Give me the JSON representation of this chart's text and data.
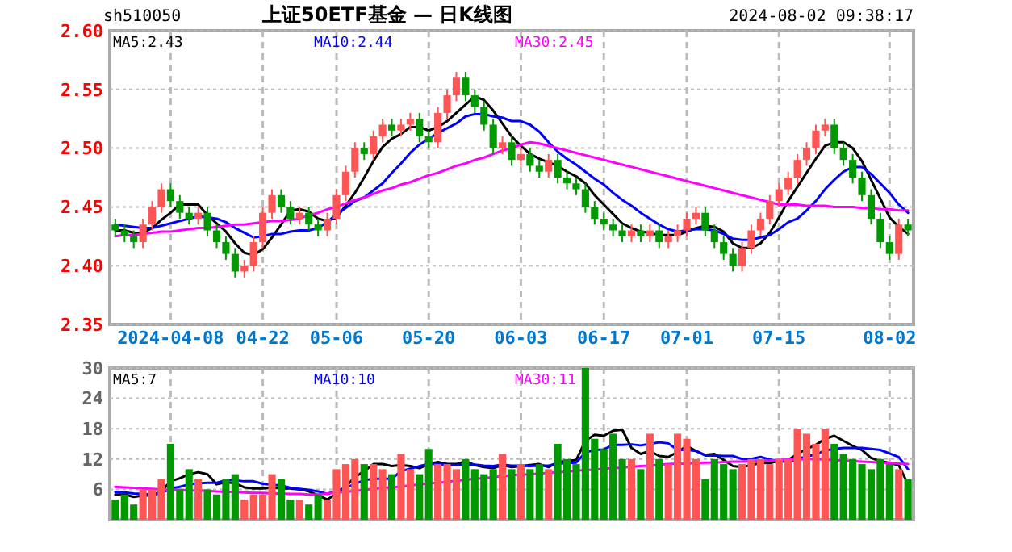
{
  "chart_data": [
    {
      "type": "candlestick",
      "title": "上证50ETF基金 — 日K线图",
      "annotations": [
        "sh510050",
        "2024-08-02 09:38:17"
      ],
      "categories": [
        null,
        null,
        null,
        null,
        null,
        null,
        "2024-04-08",
        null,
        null,
        null,
        null,
        null,
        null,
        null,
        null,
        null,
        "04-22",
        null,
        null,
        null,
        null,
        null,
        null,
        null,
        "05-06",
        null,
        null,
        null,
        null,
        null,
        null,
        null,
        null,
        null,
        "05-20",
        null,
        null,
        null,
        null,
        null,
        null,
        null,
        null,
        null,
        "06-03",
        null,
        null,
        null,
        null,
        null,
        null,
        null,
        null,
        "06-17",
        null,
        null,
        null,
        null,
        null,
        null,
        null,
        null,
        "07-01",
        null,
        null,
        null,
        null,
        null,
        null,
        null,
        null,
        null,
        "07-15",
        null,
        null,
        null,
        null,
        null,
        null,
        null,
        null,
        null,
        null,
        null,
        "08-02",
        null,
        null
      ],
      "ohlc": [
        [
          2.435,
          2.44,
          2.425,
          2.43
        ],
        [
          2.43,
          2.435,
          2.42,
          2.425
        ],
        [
          2.425,
          2.43,
          2.415,
          2.42
        ],
        [
          2.42,
          2.44,
          2.415,
          2.435
        ],
        [
          2.435,
          2.455,
          2.43,
          2.45
        ],
        [
          2.45,
          2.47,
          2.445,
          2.465
        ],
        [
          2.465,
          2.47,
          2.45,
          2.455
        ],
        [
          2.455,
          2.46,
          2.44,
          2.445
        ],
        [
          2.445,
          2.45,
          2.435,
          2.44
        ],
        [
          2.44,
          2.45,
          2.435,
          2.445
        ],
        [
          2.445,
          2.45,
          2.425,
          2.43
        ],
        [
          2.43,
          2.435,
          2.415,
          2.42
        ],
        [
          2.42,
          2.425,
          2.405,
          2.41
        ],
        [
          2.41,
          2.415,
          2.39,
          2.395
        ],
        [
          2.395,
          2.405,
          2.39,
          2.4
        ],
        [
          2.4,
          2.425,
          2.395,
          2.42
        ],
        [
          2.42,
          2.45,
          2.415,
          2.445
        ],
        [
          2.445,
          2.465,
          2.44,
          2.46
        ],
        [
          2.46,
          2.465,
          2.445,
          2.45
        ],
        [
          2.45,
          2.455,
          2.435,
          2.44
        ],
        [
          2.44,
          2.45,
          2.435,
          2.445
        ],
        [
          2.445,
          2.45,
          2.43,
          2.435
        ],
        [
          2.435,
          2.44,
          2.425,
          2.43
        ],
        [
          2.43,
          2.445,
          2.425,
          2.44
        ],
        [
          2.44,
          2.465,
          2.435,
          2.46
        ],
        [
          2.46,
          2.485,
          2.455,
          2.48
        ],
        [
          2.48,
          2.505,
          2.475,
          2.5
        ],
        [
          2.5,
          2.505,
          2.49,
          2.495
        ],
        [
          2.495,
          2.515,
          2.49,
          2.51
        ],
        [
          2.51,
          2.525,
          2.505,
          2.52
        ],
        [
          2.52,
          2.525,
          2.51,
          2.515
        ],
        [
          2.515,
          2.525,
          2.51,
          2.52
        ],
        [
          2.52,
          2.53,
          2.515,
          2.525
        ],
        [
          2.525,
          2.53,
          2.505,
          2.51
        ],
        [
          2.51,
          2.515,
          2.5,
          2.505
        ],
        [
          2.505,
          2.535,
          2.5,
          2.53
        ],
        [
          2.53,
          2.55,
          2.525,
          2.545
        ],
        [
          2.545,
          2.565,
          2.54,
          2.56
        ],
        [
          2.56,
          2.565,
          2.54,
          2.545
        ],
        [
          2.545,
          2.55,
          2.53,
          2.535
        ],
        [
          2.535,
          2.54,
          2.515,
          2.52
        ],
        [
          2.52,
          2.525,
          2.495,
          2.5
        ],
        [
          2.5,
          2.51,
          2.495,
          2.505
        ],
        [
          2.505,
          2.51,
          2.485,
          2.49
        ],
        [
          2.49,
          2.5,
          2.485,
          2.495
        ],
        [
          2.495,
          2.5,
          2.48,
          2.485
        ],
        [
          2.485,
          2.49,
          2.475,
          2.48
        ],
        [
          2.48,
          2.495,
          2.475,
          2.49
        ],
        [
          2.49,
          2.495,
          2.47,
          2.475
        ],
        [
          2.475,
          2.48,
          2.465,
          2.47
        ],
        [
          2.47,
          2.475,
          2.46,
          2.465
        ],
        [
          2.465,
          2.47,
          2.445,
          2.45
        ],
        [
          2.45,
          2.455,
          2.435,
          2.44
        ],
        [
          2.44,
          2.445,
          2.43,
          2.435
        ],
        [
          2.435,
          2.44,
          2.425,
          2.43
        ],
        [
          2.43,
          2.435,
          2.42,
          2.425
        ],
        [
          2.425,
          2.435,
          2.42,
          2.43
        ],
        [
          2.43,
          2.435,
          2.42,
          2.425
        ],
        [
          2.425,
          2.435,
          2.42,
          2.43
        ],
        [
          2.43,
          2.435,
          2.415,
          2.42
        ],
        [
          2.42,
          2.43,
          2.415,
          2.425
        ],
        [
          2.425,
          2.435,
          2.42,
          2.43
        ],
        [
          2.43,
          2.445,
          2.425,
          2.44
        ],
        [
          2.44,
          2.45,
          2.435,
          2.445
        ],
        [
          2.445,
          2.45,
          2.425,
          2.43
        ],
        [
          2.43,
          2.435,
          2.415,
          2.42
        ],
        [
          2.42,
          2.425,
          2.405,
          2.41
        ],
        [
          2.41,
          2.415,
          2.395,
          2.4
        ],
        [
          2.4,
          2.42,
          2.395,
          2.415
        ],
        [
          2.415,
          2.435,
          2.41,
          2.43
        ],
        [
          2.43,
          2.445,
          2.425,
          2.44
        ],
        [
          2.44,
          2.46,
          2.435,
          2.455
        ],
        [
          2.455,
          2.47,
          2.45,
          2.465
        ],
        [
          2.465,
          2.48,
          2.46,
          2.475
        ],
        [
          2.475,
          2.495,
          2.47,
          2.49
        ],
        [
          2.49,
          2.505,
          2.485,
          2.5
        ],
        [
          2.5,
          2.52,
          2.495,
          2.515
        ],
        [
          2.515,
          2.525,
          2.51,
          2.52
        ],
        [
          2.52,
          2.525,
          2.495,
          2.5
        ],
        [
          2.5,
          2.505,
          2.485,
          2.49
        ],
        [
          2.49,
          2.495,
          2.47,
          2.475
        ],
        [
          2.475,
          2.48,
          2.455,
          2.46
        ],
        [
          2.46,
          2.465,
          2.435,
          2.44
        ],
        [
          2.44,
          2.445,
          2.415,
          2.42
        ],
        [
          2.42,
          2.425,
          2.405,
          2.41
        ],
        [
          2.41,
          2.44,
          2.405,
          2.435
        ],
        [
          2.435,
          2.44,
          2.425,
          2.43
        ]
      ],
      "series": [
        {
          "name": "MA5:2.43",
          "type": "line",
          "color": "#000000",
          "values": [
            2.43,
            2.43,
            2.428,
            2.428,
            2.432,
            2.439,
            2.445,
            2.452,
            2.452,
            2.452,
            2.443,
            2.436,
            2.429,
            2.419,
            2.411,
            2.409,
            2.414,
            2.424,
            2.435,
            2.447,
            2.448,
            2.446,
            2.44,
            2.438,
            2.441,
            2.451,
            2.462,
            2.475,
            2.489,
            2.501,
            2.508,
            2.512,
            2.518,
            2.518,
            2.515,
            2.518,
            2.523,
            2.53,
            2.537,
            2.544,
            2.541,
            2.532,
            2.521,
            2.51,
            2.502,
            2.495,
            2.491,
            2.488,
            2.485,
            2.48,
            2.476,
            2.47,
            2.46,
            2.452,
            2.444,
            2.436,
            2.432,
            2.429,
            2.428,
            2.426,
            2.426,
            2.426,
            2.429,
            2.432,
            2.434,
            2.433,
            2.429,
            2.419,
            2.415,
            2.415,
            2.419,
            2.428,
            2.441,
            2.455,
            2.467,
            2.479,
            2.491,
            2.502,
            2.505,
            2.505,
            2.5,
            2.489,
            2.473,
            2.457,
            2.441,
            2.433,
            2.427
          ]
        },
        {
          "name": "MA10:2.44",
          "type": "line",
          "color": "#0000ff",
          "values": [
            2.435,
            2.434,
            2.433,
            2.432,
            2.432,
            2.434,
            2.436,
            2.438,
            2.44,
            2.442,
            2.441,
            2.44,
            2.437,
            2.432,
            2.428,
            2.424,
            2.425,
            2.427,
            2.427,
            2.429,
            2.43,
            2.43,
            2.432,
            2.437,
            2.444,
            2.449,
            2.455,
            2.458,
            2.464,
            2.47,
            2.479,
            2.487,
            2.496,
            2.503,
            2.508,
            2.513,
            2.517,
            2.521,
            2.527,
            2.529,
            2.529,
            2.527,
            2.526,
            2.523,
            2.523,
            2.52,
            2.514,
            2.505,
            2.497,
            2.491,
            2.486,
            2.48,
            2.474,
            2.469,
            2.462,
            2.456,
            2.451,
            2.445,
            2.44,
            2.435,
            2.431,
            2.429,
            2.43,
            2.431,
            2.431,
            2.43,
            2.427,
            2.423,
            2.422,
            2.422,
            2.424,
            2.426,
            2.431,
            2.437,
            2.44,
            2.447,
            2.455,
            2.465,
            2.473,
            2.48,
            2.484,
            2.484,
            2.478,
            2.47,
            2.462,
            2.452,
            2.445
          ]
        },
        {
          "name": "MA30:2.45",
          "type": "line",
          "color": "#ff00ff",
          "values": [
            2.425,
            2.426,
            2.426,
            2.427,
            2.428,
            2.429,
            2.429,
            2.43,
            2.431,
            2.432,
            2.432,
            2.433,
            2.434,
            2.435,
            2.435,
            2.436,
            2.437,
            2.438,
            2.438,
            2.439,
            2.44,
            2.443,
            2.445,
            2.448,
            2.45,
            2.453,
            2.456,
            2.458,
            2.461,
            2.464,
            2.466,
            2.469,
            2.471,
            2.474,
            2.477,
            2.479,
            2.482,
            2.485,
            2.487,
            2.49,
            2.492,
            2.495,
            2.498,
            2.5,
            2.503,
            2.505,
            2.504,
            2.502,
            2.5,
            2.498,
            2.496,
            2.494,
            2.492,
            2.49,
            2.488,
            2.486,
            2.484,
            2.482,
            2.48,
            2.478,
            2.476,
            2.474,
            2.472,
            2.47,
            2.468,
            2.466,
            2.464,
            2.462,
            2.46,
            2.458,
            2.456,
            2.454,
            2.452,
            2.452,
            2.452,
            2.451,
            2.451,
            2.451,
            2.45,
            2.45,
            2.45,
            2.449,
            2.449,
            2.448,
            2.448,
            2.447,
            2.447
          ]
        }
      ],
      "ylim": [
        2.35,
        2.6
      ],
      "yticks": [
        2.35,
        {
          "value": 2.4,
          "label": "2.40"
        },
        2.45,
        {
          "value": 2.5,
          "label": "2.50"
        },
        2.55,
        {
          "value": 2.6,
          "label": "2.60"
        }
      ],
      "grid": true,
      "legend": "top"
    },
    {
      "type": "bar",
      "categories": [
        null,
        null,
        null,
        null,
        null,
        null,
        null,
        null,
        null,
        null,
        null,
        null,
        null,
        null,
        null,
        null,
        null,
        null,
        null,
        null,
        null,
        null,
        null,
        null,
        null,
        null,
        null,
        null,
        null,
        null,
        null,
        null,
        null,
        null,
        null,
        null,
        null,
        null,
        null,
        null,
        null,
        null,
        null,
        null,
        null,
        null,
        null,
        null,
        null,
        null,
        null,
        null,
        null,
        null,
        null,
        null,
        null,
        null,
        null,
        null,
        null,
        null,
        null,
        null,
        null,
        null,
        null,
        null,
        null,
        null,
        null,
        null,
        null,
        null,
        null,
        null,
        null,
        null,
        null,
        null,
        null,
        null,
        null,
        null,
        null,
        null,
        null
      ],
      "values": [
        4,
        5,
        3,
        6,
        6,
        8,
        15,
        6,
        10,
        8,
        6,
        5,
        8,
        9,
        4,
        5,
        5,
        9,
        8,
        4,
        4,
        3,
        5,
        4,
        10,
        11,
        12,
        11,
        11,
        10,
        9,
        13,
        10,
        9,
        14,
        11,
        11,
        10,
        12,
        10,
        9,
        10,
        13,
        10,
        11,
        10,
        11,
        10,
        15,
        12,
        11,
        30,
        16,
        14,
        17,
        12,
        12,
        10,
        17,
        12,
        11,
        17,
        16,
        12,
        8,
        12,
        11,
        10,
        11,
        12,
        12,
        11,
        12,
        12,
        18,
        17,
        15,
        18,
        15,
        13,
        12,
        11,
        10,
        12,
        11,
        10,
        8
      ],
      "colors": [
        "#009900",
        "#009900",
        "#009900",
        "#ff5555",
        "#ff5555",
        "#ff5555",
        "#009900",
        "#009900",
        "#009900",
        "#ff5555",
        "#009900",
        "#009900",
        "#009900",
        "#009900",
        "#ff5555",
        "#ff5555",
        "#ff5555",
        "#ff5555",
        "#009900",
        "#009900",
        "#ff5555",
        "#009900",
        "#009900",
        "#ff5555",
        "#ff5555",
        "#ff5555",
        "#ff5555",
        "#009900",
        "#ff5555",
        "#ff5555",
        "#009900",
        "#ff5555",
        "#ff5555",
        "#009900",
        "#009900",
        "#ff5555",
        "#ff5555",
        "#ff5555",
        "#009900",
        "#009900",
        "#009900",
        "#009900",
        "#ff5555",
        "#009900",
        "#ff5555",
        "#009900",
        "#009900",
        "#ff5555",
        "#009900",
        "#009900",
        "#009900",
        "#009900",
        "#009900",
        "#009900",
        "#009900",
        "#009900",
        "#ff5555",
        "#009900",
        "#ff5555",
        "#009900",
        "#ff5555",
        "#ff5555",
        "#ff5555",
        "#ff5555",
        "#009900",
        "#009900",
        "#009900",
        "#009900",
        "#ff5555",
        "#ff5555",
        "#ff5555",
        "#ff5555",
        "#ff5555",
        "#ff5555",
        "#ff5555",
        "#ff5555",
        "#ff5555",
        "#ff5555",
        "#009900",
        "#009900",
        "#009900",
        "#009900",
        "#009900",
        "#009900",
        "#009900",
        "#ff5555",
        "#009900"
      ],
      "series": [
        {
          "name": "MA5:7",
          "type": "line",
          "color": "#000000",
          "values": [
            5,
            5,
            4.5,
            4.8,
            4.8,
            5.6,
            7.6,
            8.2,
            9,
            9.4,
            9,
            7,
            7.4,
            7.2,
            6.4,
            6.2,
            6.2,
            6.4,
            6.2,
            6.2,
            6,
            5.6,
            4.8,
            4,
            5.2,
            6.6,
            8.4,
            9.6,
            11,
            11,
            10.6,
            10.8,
            10.6,
            10.2,
            11,
            11.4,
            11,
            11,
            11.6,
            10.8,
            10.4,
            10.2,
            10.8,
            10.4,
            10.6,
            10.8,
            11,
            10.4,
            11.4,
            11.6,
            11.8,
            15.6,
            16.8,
            16.6,
            17.6,
            17.8,
            14.2,
            13,
            13.6,
            12.6,
            12.4,
            13.4,
            14.6,
            13.6,
            12.8,
            13,
            11.8,
            10.6,
            10.4,
            10.8,
            11.2,
            11.2,
            11.6,
            11.8,
            13,
            14,
            14.8,
            16,
            16.6,
            15.6,
            14.6,
            13.8,
            12.2,
            11.6,
            11.2,
            10.8,
            7
          ]
        },
        {
          "name": "MA10:10",
          "type": "line",
          "color": "#0000ff",
          "values": [
            5.5,
            5.4,
            5.2,
            5.1,
            5,
            5.2,
            6.2,
            6.5,
            7,
            7.2,
            7.3,
            7.3,
            7.8,
            7.8,
            7.6,
            7.6,
            7.1,
            6.9,
            6.8,
            6.3,
            6.1,
            5.9,
            5.6,
            5.1,
            5.7,
            6.3,
            7.1,
            7.8,
            8.1,
            8.1,
            8.1,
            9.6,
            10.1,
            10.6,
            11,
            11,
            10.8,
            10.8,
            10.9,
            10.9,
            10.7,
            10.6,
            10.9,
            10.7,
            10.7,
            10.6,
            10.7,
            10.7,
            11.1,
            11.2,
            11.3,
            13.3,
            13.8,
            13.9,
            14.8,
            14.8,
            14.9,
            14.7,
            15,
            15.3,
            15.1,
            13.8,
            13.8,
            13.6,
            12.7,
            12.7,
            12.6,
            12.6,
            12,
            12,
            12.4,
            11.9,
            11.6,
            11.4,
            12,
            12.5,
            12.9,
            13.7,
            14,
            14.2,
            14.2,
            14.2,
            14,
            13.8,
            13.1,
            12.4,
            10
          ]
        },
        {
          "name": "MA30:11",
          "type": "line",
          "color": "#ff00ff",
          "values": [
            6.5,
            6.4,
            6.3,
            6.2,
            6.1,
            6,
            5.9,
            5.9,
            5.8,
            5.8,
            5.7,
            5.6,
            5.5,
            5.5,
            5.4,
            5.3,
            5.3,
            5.2,
            5.2,
            5.1,
            5.1,
            5,
            5,
            5.2,
            5.4,
            5.5,
            5.7,
            5.9,
            6.1,
            6.3,
            6.4,
            6.6,
            6.8,
            7,
            7.2,
            7.3,
            7.5,
            7.7,
            7.9,
            8.1,
            8.2,
            8.4,
            8.6,
            8.8,
            8.9,
            9,
            9.1,
            9.3,
            9.4,
            9.5,
            9.7,
            9.8,
            9.9,
            10.1,
            10.2,
            10.3,
            10.5,
            10.6,
            10.7,
            10.9,
            11,
            11.1,
            11.1,
            11.2,
            11.3,
            11.3,
            11.4,
            11.5,
            11.5,
            11.6,
            11.7,
            11.7,
            11.8,
            11.9,
            11.9,
            12,
            12,
            11.9,
            11.8,
            11.7,
            11.6,
            11.5,
            11.4,
            11.3,
            11.2,
            11.1,
            11
          ]
        }
      ],
      "ylim": [
        0,
        30
      ],
      "yticks": [
        6,
        12,
        18,
        24,
        30
      ],
      "grid": true,
      "legend": "top"
    }
  ]
}
